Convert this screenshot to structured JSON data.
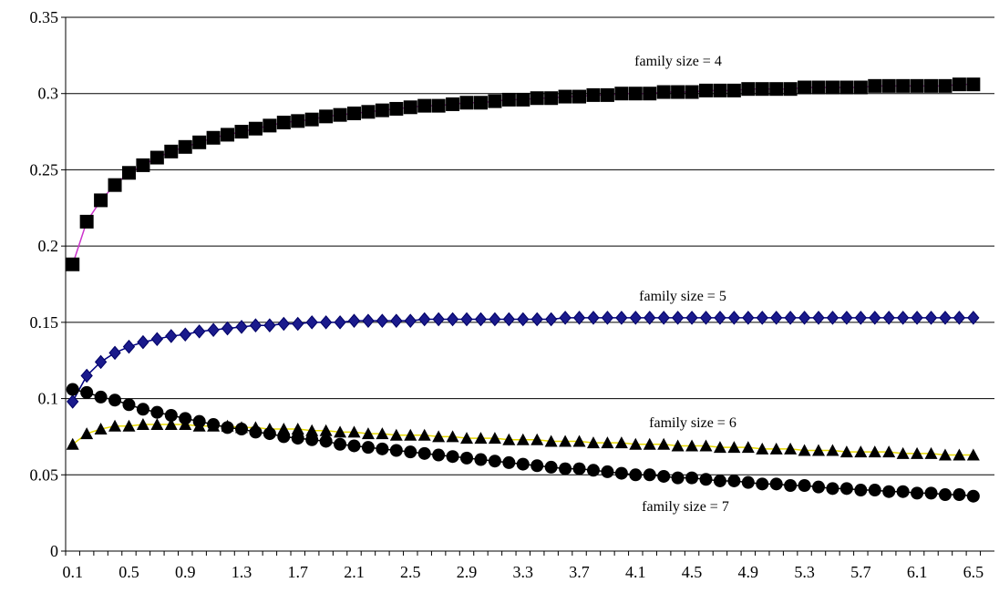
{
  "chart_data": {
    "type": "line",
    "title": "",
    "xlabel": "",
    "ylabel": "",
    "ylim": [
      0,
      0.35
    ],
    "xlim": [
      0.05,
      6.65
    ],
    "grid": {
      "horizontal": true,
      "vertical": false
    },
    "y_ticks": [
      "0",
      "0.05",
      "0.1",
      "0.15",
      "0.2",
      "0.25",
      "0.3",
      "0.35"
    ],
    "x_tick_labels": [
      "0.1",
      "0.5",
      "0.9",
      "1.3",
      "1.7",
      "2.1",
      "2.5",
      "2.9",
      "3.3",
      "3.7",
      "4.1",
      "4.5",
      "4.9",
      "5.3",
      "5.7",
      "6.1",
      "6.5"
    ],
    "x_start": 0.1,
    "x_step": 0.1,
    "x_count": 65,
    "annotations": [
      {
        "text": "family size = 4",
        "series": 0
      },
      {
        "text": "family size = 5",
        "series": 1
      },
      {
        "text": "family size = 6",
        "series": 2
      },
      {
        "text": "family size = 7",
        "series": 3
      }
    ],
    "series": [
      {
        "marker": "square",
        "line_color": "#cc33cc",
        "marker_color": "#000000",
        "values": [
          0.188,
          0.216,
          0.23,
          0.24,
          0.248,
          0.253,
          0.258,
          0.262,
          0.265,
          0.268,
          0.271,
          0.273,
          0.275,
          0.277,
          0.279,
          0.281,
          0.282,
          0.283,
          0.285,
          0.286,
          0.287,
          0.288,
          0.289,
          0.29,
          0.291,
          0.292,
          0.292,
          0.293,
          0.294,
          0.294,
          0.295,
          0.296,
          0.296,
          0.297,
          0.297,
          0.298,
          0.298,
          0.299,
          0.299,
          0.3,
          0.3,
          0.3,
          0.301,
          0.301,
          0.301,
          0.302,
          0.302,
          0.302,
          0.303,
          0.303,
          0.303,
          0.303,
          0.304,
          0.304,
          0.304,
          0.304,
          0.304,
          0.305,
          0.305,
          0.305,
          0.305,
          0.305,
          0.305,
          0.306,
          0.306
        ]
      },
      {
        "marker": "diamond",
        "line_color": "#000080",
        "marker_color": "#1a1a8c",
        "values": [
          0.098,
          0.115,
          0.124,
          0.13,
          0.134,
          0.137,
          0.139,
          0.141,
          0.142,
          0.144,
          0.145,
          0.146,
          0.147,
          0.148,
          0.148,
          0.149,
          0.149,
          0.15,
          0.15,
          0.15,
          0.151,
          0.151,
          0.151,
          0.151,
          0.151,
          0.152,
          0.152,
          0.152,
          0.152,
          0.152,
          0.152,
          0.152,
          0.152,
          0.152,
          0.152,
          0.153,
          0.153,
          0.153,
          0.153,
          0.153,
          0.153,
          0.153,
          0.153,
          0.153,
          0.153,
          0.153,
          0.153,
          0.153,
          0.153,
          0.153,
          0.153,
          0.153,
          0.153,
          0.153,
          0.153,
          0.153,
          0.153,
          0.153,
          0.153,
          0.153,
          0.153,
          0.153,
          0.153,
          0.153,
          0.153
        ]
      },
      {
        "marker": "triangle",
        "line_color": "#e6d800",
        "marker_color": "#000000",
        "values": [
          0.07,
          0.077,
          0.08,
          0.082,
          0.082,
          0.083,
          0.083,
          0.083,
          0.083,
          0.082,
          0.082,
          0.082,
          0.081,
          0.081,
          0.08,
          0.08,
          0.08,
          0.079,
          0.079,
          0.078,
          0.078,
          0.077,
          0.077,
          0.076,
          0.076,
          0.076,
          0.075,
          0.075,
          0.074,
          0.074,
          0.074,
          0.073,
          0.073,
          0.073,
          0.072,
          0.072,
          0.072,
          0.071,
          0.071,
          0.071,
          0.07,
          0.07,
          0.07,
          0.069,
          0.069,
          0.069,
          0.068,
          0.068,
          0.068,
          0.067,
          0.067,
          0.067,
          0.066,
          0.066,
          0.066,
          0.065,
          0.065,
          0.065,
          0.065,
          0.064,
          0.064,
          0.064,
          0.063,
          0.063,
          0.063
        ]
      },
      {
        "marker": "circle",
        "line_color": "#000000",
        "marker_color": "#000000",
        "values": [
          0.106,
          0.104,
          0.101,
          0.099,
          0.096,
          0.093,
          0.091,
          0.089,
          0.087,
          0.085,
          0.083,
          0.081,
          0.08,
          0.078,
          0.077,
          0.075,
          0.074,
          0.073,
          0.072,
          0.07,
          0.069,
          0.068,
          0.067,
          0.066,
          0.065,
          0.064,
          0.063,
          0.062,
          0.061,
          0.06,
          0.059,
          0.058,
          0.057,
          0.056,
          0.055,
          0.054,
          0.054,
          0.053,
          0.052,
          0.051,
          0.05,
          0.05,
          0.049,
          0.048,
          0.048,
          0.047,
          0.046,
          0.046,
          0.045,
          0.044,
          0.044,
          0.043,
          0.043,
          0.042,
          0.041,
          0.041,
          0.04,
          0.04,
          0.039,
          0.039,
          0.038,
          0.038,
          0.037,
          0.037,
          0.036
        ]
      }
    ]
  }
}
